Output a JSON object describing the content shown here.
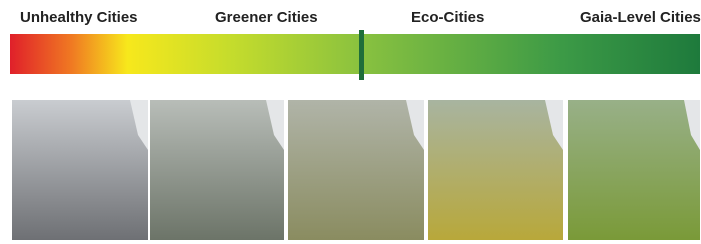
{
  "labels": [
    "Unhealthy Cities",
    "Greener Cities",
    "Eco-Cities",
    "Gaia-Level Cities"
  ]
}
